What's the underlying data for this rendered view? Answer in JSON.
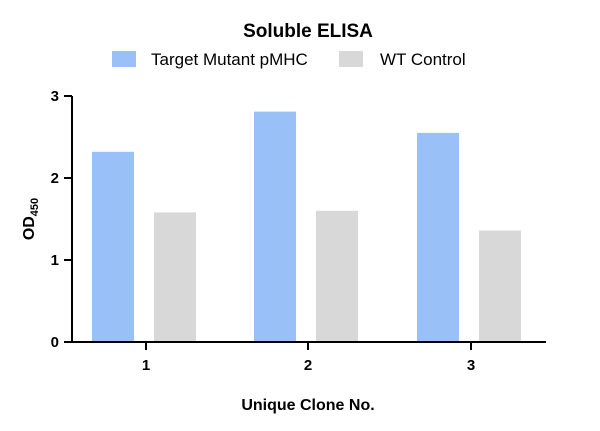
{
  "chart_data": {
    "type": "bar",
    "title": "Soluble ELISA",
    "xlabel": "Unique Clone No.",
    "ylabel": "OD",
    "ylabel_subscript": "450",
    "categories": [
      "1",
      "2",
      "3"
    ],
    "series": [
      {
        "name": "Target Mutant pMHC",
        "values": [
          2.32,
          2.81,
          2.55
        ],
        "color": "#99c1f7"
      },
      {
        "name": "WT Control",
        "values": [
          1.58,
          1.6,
          1.36
        ],
        "color": "#d8d8d8"
      }
    ],
    "ylim": [
      0,
      3
    ],
    "yticks": [
      0,
      1,
      2,
      3
    ],
    "grid": false,
    "legend_position": "top"
  }
}
